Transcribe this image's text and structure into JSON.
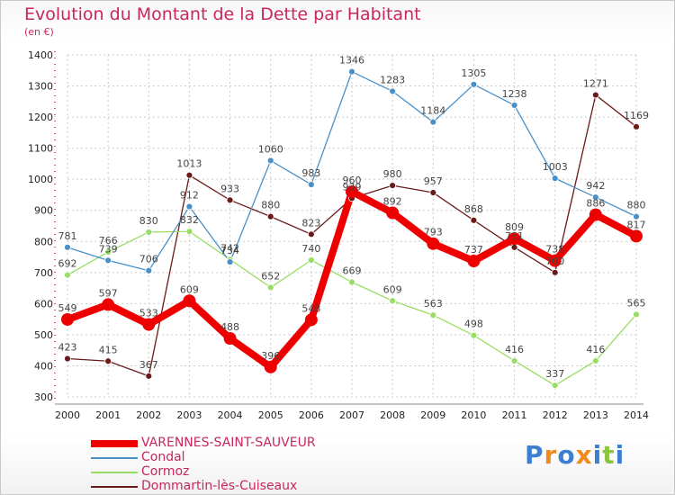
{
  "chart_data": {
    "type": "line",
    "title": "Evolution du Montant de la Dette par Habitant",
    "subtitle": "(en €)",
    "x": [
      "2000",
      "2001",
      "2002",
      "2003",
      "2004",
      "2005",
      "2006",
      "2007",
      "2008",
      "2009",
      "2010",
      "2011",
      "2012",
      "2013",
      "2014"
    ],
    "yticks": [
      "300",
      "400",
      "500",
      "600",
      "700",
      "800",
      "900",
      "1000",
      "1100",
      "1200",
      "1300",
      "1400"
    ],
    "ylim": [
      300,
      1400
    ],
    "grid": true,
    "legend_position": "bottom-left",
    "series": [
      {
        "name": "Dommartin-lès-Cuiseaux",
        "color": "#6b1a1a",
        "values": [
          423,
          415,
          367,
          1013,
          933,
          880,
          823,
          939,
          980,
          957,
          868,
          781,
          700,
          1271,
          1169
        ]
      },
      {
        "name": "Cormoz",
        "color": "#99dd66",
        "values": [
          692,
          766,
          830,
          832,
          742,
          652,
          740,
          669,
          609,
          563,
          498,
          416,
          337,
          416,
          565
        ]
      },
      {
        "name": "Condal",
        "color": "#4a90c8",
        "values": [
          781,
          739,
          706,
          912,
          734,
          1060,
          983,
          1346,
          1283,
          1184,
          1305,
          1238,
          1003,
          942,
          880
        ]
      },
      {
        "name": "VARENNES-SAINT-SAUVEUR",
        "color": "#ee0000",
        "values": [
          549,
          597,
          533,
          609,
          488,
          396,
          548,
          960,
          892,
          793,
          737,
          809,
          738,
          886,
          817
        ]
      }
    ]
  },
  "brand": {
    "letters": [
      "P",
      "r",
      "o",
      "x",
      "i",
      "t",
      "i"
    ],
    "colors": [
      "#3a7fd0",
      "#f08a1c",
      "#3a7fd0",
      "#f08a1c",
      "#3a7fd0",
      "#8bc540",
      "#3a7fd0"
    ]
  }
}
